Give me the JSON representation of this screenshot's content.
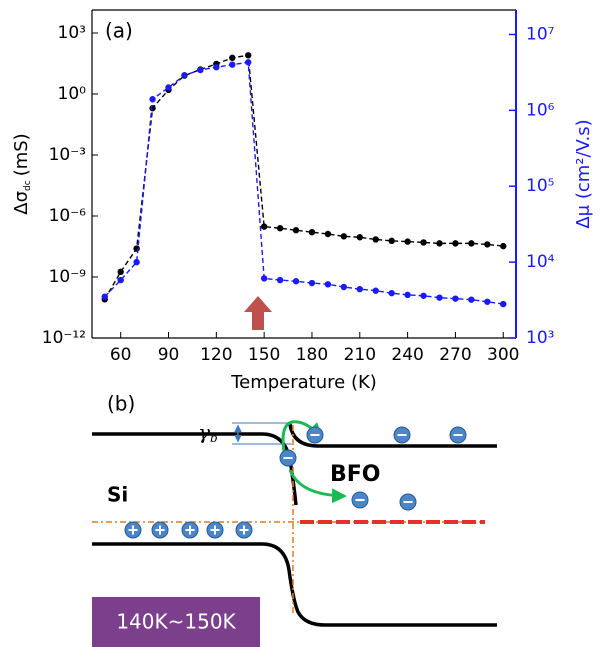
{
  "chart_data": {
    "type": "line",
    "panel_label": "(a)",
    "x_label": "Temperature (K)",
    "y_label": {
      "symbol": "Δσ",
      "subscript": "dc",
      "unit": "(mS)"
    },
    "y2_label": "Δμ (cm²/V.s)",
    "y2_color": "#1a1aff",
    "x": [
      50,
      60,
      70,
      80,
      90,
      100,
      110,
      120,
      130,
      140,
      150,
      160,
      170,
      180,
      190,
      200,
      210,
      220,
      230,
      240,
      250,
      260,
      270,
      280,
      290,
      300
    ],
    "series": [
      {
        "color": "#000000",
        "values": [
          8e-11,
          1.8e-09,
          2.5e-08,
          0.2,
          1.6,
          8,
          16,
          30,
          60,
          80,
          3e-07,
          2.5e-07,
          2e-07,
          1.6e-07,
          1.3e-07,
          1e-07,
          9e-08,
          7e-08,
          6e-08,
          5.5e-08,
          5e-08,
          4.5e-08,
          4.5e-08,
          4.5e-08,
          4e-08,
          3.3e-08
        ]
      },
      {
        "color": "#1a1aff",
        "axis": "y2",
        "values": [
          3500,
          5800,
          10000,
          1400000,
          2000000,
          2900000,
          3400000,
          3700000,
          4000000,
          4300000,
          6100,
          5800,
          5600,
          5300,
          5100,
          4700,
          4400,
          4200,
          3900,
          3700,
          3600,
          3400,
          3300,
          3200,
          3000,
          2800
        ]
      }
    ],
    "xlim": [
      42,
      308
    ],
    "xticks": [
      60,
      90,
      120,
      150,
      180,
      210,
      240,
      270,
      300
    ],
    "ylog": true,
    "ylim": [
      1e-12,
      13500
    ],
    "yticks": [
      {
        "value": 1e-12,
        "label": "10⁻¹²"
      },
      {
        "value": 1e-09,
        "label": "10⁻⁹"
      },
      {
        "value": 1e-06,
        "label": "10⁻⁶"
      },
      {
        "value": 0.001,
        "label": "10⁻³"
      },
      {
        "value": 1,
        "label": "10⁰"
      },
      {
        "value": 1000,
        "label": "10³"
      }
    ],
    "y2log": true,
    "y2lim": [
      1000,
      21000000
    ],
    "y2ticks": [
      {
        "value": 1000,
        "label": "10³"
      },
      {
        "value": 10000,
        "label": "10⁴"
      },
      {
        "value": 100000,
        "label": "10⁵"
      },
      {
        "value": 1000000,
        "label": "10⁶"
      },
      {
        "value": 10000000,
        "label": "10⁷"
      }
    ]
  },
  "diagram": {
    "panel_label": "(b)",
    "left_material": "Si",
    "right_material": "BFO",
    "temperature_range": "140K~150K",
    "barrier_symbol": "γ",
    "barrier_subscript": "b"
  }
}
